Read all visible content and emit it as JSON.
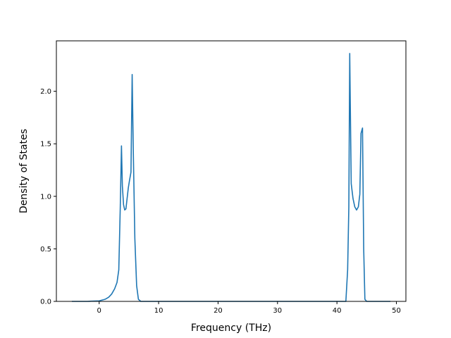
{
  "chart_data": {
    "type": "line",
    "title": "",
    "xlabel": "Frequency (THz)",
    "ylabel": "Density of States",
    "xlim": [
      -7.2,
      51.6
    ],
    "ylim": [
      0,
      2.48
    ],
    "xticks": [
      0,
      10,
      20,
      30,
      40,
      50
    ],
    "yticks": [
      0.0,
      0.5,
      1.0,
      1.5,
      2.0
    ],
    "xtick_labels": [
      "0",
      "10",
      "20",
      "30",
      "40",
      "50"
    ],
    "ytick_labels": [
      "0.0",
      "0.5",
      "1.0",
      "1.5",
      "2.0"
    ],
    "grid": false,
    "line_color": "#1f77b4",
    "series": [
      {
        "x": [
          -4.6,
          -2.0,
          0.0,
          1.0,
          1.6,
          2.1,
          2.6,
          3.0,
          3.3,
          3.55,
          3.75,
          3.9,
          4.1,
          4.3,
          4.5,
          4.7,
          4.9,
          5.1,
          5.35,
          5.55,
          5.75,
          6.0,
          6.3,
          6.6,
          7.0,
          10,
          20,
          30,
          40,
          41.5,
          41.8,
          42.0,
          42.15,
          42.4,
          42.7,
          43.0,
          43.3,
          43.6,
          43.85,
          44.05,
          44.3,
          44.5,
          44.7,
          45,
          49.0
        ],
        "y": [
          0,
          0,
          0.005,
          0.02,
          0.04,
          0.07,
          0.12,
          0.18,
          0.3,
          0.9,
          1.48,
          1.1,
          0.92,
          0.87,
          0.88,
          0.98,
          1.08,
          1.15,
          1.23,
          2.16,
          1.4,
          0.6,
          0.15,
          0.02,
          0,
          0,
          0,
          0,
          0,
          0,
          0.3,
          0.9,
          2.36,
          1.12,
          0.98,
          0.9,
          0.87,
          0.9,
          1.02,
          1.6,
          1.65,
          0.5,
          0.02,
          0,
          0
        ]
      }
    ]
  }
}
